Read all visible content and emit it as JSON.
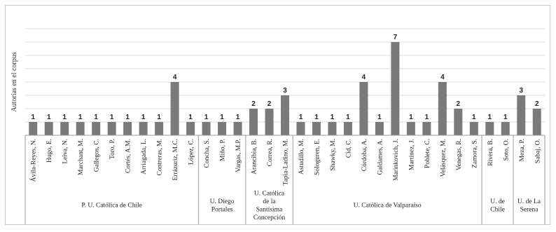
{
  "chart_data": {
    "type": "bar",
    "ylabel": "Autorías en el corpus",
    "xlabel": "",
    "ylim": [
      0,
      8
    ],
    "grid": true,
    "legend": "none",
    "bar_color": "#7a7a7a",
    "gridline_color": "#dcdcdc",
    "categories": [
      "Ávila-Reyes, N.",
      "Hugo, E.",
      "Leiva, N.",
      "Marchant, M.",
      "Gallegos, C.",
      "Toro, P.",
      "Cortés, A.M.",
      "Arriagada, L.",
      "Contreras, M.",
      "Errázuriz, M.C.",
      "López, C.",
      "Concha, S.",
      "Miño, P.",
      "Vargas, M.P.",
      "Arancibia, B.",
      "Correa, R.",
      "Tapia-Ladino, M.",
      "Astudillo, M.",
      "Sologuren, E.",
      "Shawky, M.",
      "Cid, C.",
      "Córdoba, A.",
      "Galdames, A.",
      "Marinkovich, J.",
      "Martínez, J.",
      "Poblete, C.",
      "Velásquez, M.",
      "Venegas, R.",
      "Zamora, S.",
      "Rivera, B.",
      "Soto, O.",
      "Meza, P.",
      "Sabaj, O."
    ],
    "values": [
      1,
      1,
      1,
      1,
      1,
      1,
      1,
      1,
      1,
      4,
      1,
      1,
      1,
      1,
      2,
      2,
      3,
      1,
      1,
      1,
      1,
      4,
      1,
      7,
      1,
      1,
      4,
      2,
      1,
      1,
      1,
      3,
      2
    ],
    "groups": [
      {
        "label": "P. U. Católica de Chile",
        "count": 11
      },
      {
        "label": "U. Diego Portales",
        "count": 3
      },
      {
        "label": "U. Católica de la Santísima Concepción",
        "count": 3
      },
      {
        "label": "U. Católica de Valparaíso",
        "count": 12
      },
      {
        "label": "U. de Chile",
        "count": 2
      },
      {
        "label": "U. de La Serena",
        "count": 2
      }
    ]
  }
}
